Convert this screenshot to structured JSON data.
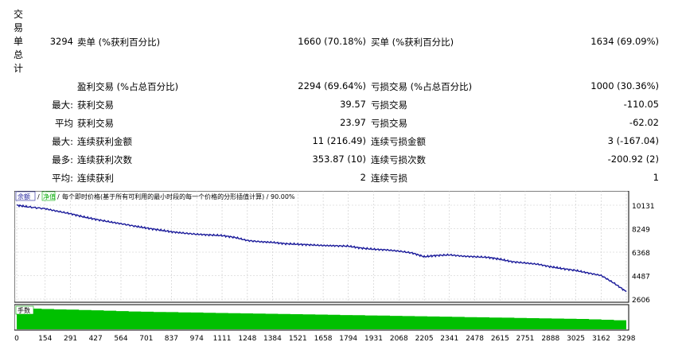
{
  "side_label": [
    "交",
    "易",
    "单",
    "总",
    "计"
  ],
  "summary": {
    "total_count": "3294",
    "sell_label": "卖单 (%获利百分比)",
    "sell_value": "1660 (70.18%)",
    "buy_label": "买单 (%获利百分比)",
    "buy_value": "1634 (69.09%)"
  },
  "profit_row": {
    "win_label": "盈利交易 (%占总百分比)",
    "win_value": "2294 (69.64%)",
    "loss_label": "亏损交易 (%占总百分比)",
    "loss_value": "1000 (30.36%)"
  },
  "stats_rows": [
    {
      "prefix": "最大:",
      "label_a": "获利交易",
      "value_a": "39.57",
      "label_b": "亏损交易",
      "value_b": "-110.05"
    },
    {
      "prefix": "平均",
      "label_a": "获利交易",
      "value_a": "23.97",
      "label_b": "亏损交易",
      "value_b": "-62.02"
    },
    {
      "prefix": "最大:",
      "label_a": "连续获利金额",
      "value_a": "11 (216.49)",
      "label_b": "连续亏损金额",
      "value_b": "3 (-167.04)"
    },
    {
      "prefix": "最多:",
      "label_a": "连续获利次数",
      "value_a": "353.87 (10)",
      "label_b": "连续亏损次数",
      "value_b": "-200.92 (2)"
    },
    {
      "prefix": "平均:",
      "label_a": "连续获利",
      "value_a": "2",
      "label_b": "连续亏损",
      "value_b": "1"
    }
  ],
  "chart_header": {
    "balance_tag": "余额",
    "sep1": "/",
    "equity_tag": "净值",
    "sep2": "/",
    "text": "每个即时价格(基于所有可利用的最小时段的每一个价格的分形插值计算) / 90.00%"
  },
  "volume_tag": "手数",
  "colors": {
    "balance_line": "#1a1a9a",
    "volume_fill": "#00c000",
    "grid": "#c8c8c8",
    "border": "#000000"
  },
  "chart_data": {
    "type": "line",
    "series": [
      {
        "name": "余额",
        "x": [
          0,
          60,
          154,
          220,
          291,
          360,
          427,
          500,
          564,
          640,
          701,
          770,
          837,
          900,
          974,
          1040,
          1111,
          1180,
          1248,
          1320,
          1384,
          1450,
          1521,
          1590,
          1658,
          1720,
          1794,
          1860,
          1931,
          2000,
          2068,
          2140,
          2205,
          2270,
          2341,
          2410,
          2478,
          2550,
          2615,
          2680,
          2751,
          2820,
          2888,
          2950,
          3025,
          3090,
          3162,
          3230,
          3298
        ],
        "values": [
          10131,
          10000,
          9850,
          9650,
          9450,
          9200,
          9000,
          8800,
          8650,
          8450,
          8300,
          8150,
          8000,
          7900,
          7800,
          7750,
          7700,
          7550,
          7300,
          7200,
          7150,
          7050,
          7000,
          6950,
          6900,
          6880,
          6850,
          6700,
          6600,
          6550,
          6450,
          6300,
          6000,
          6100,
          6150,
          6050,
          6000,
          5950,
          5800,
          5600,
          5500,
          5400,
          5200,
          5050,
          4900,
          4700,
          4500,
          3900,
          3200
        ]
      }
    ],
    "volume_series": {
      "name": "手数",
      "values": [
        1.0,
        1.0,
        0.98,
        0.96,
        0.95,
        0.93,
        0.92,
        0.9,
        0.88,
        0.86,
        0.85,
        0.84,
        0.83,
        0.82,
        0.81,
        0.8,
        0.79,
        0.78,
        0.77,
        0.76,
        0.75,
        0.74,
        0.73,
        0.72,
        0.71,
        0.7,
        0.69,
        0.68,
        0.67,
        0.66,
        0.65,
        0.64,
        0.63,
        0.62,
        0.61,
        0.6,
        0.59,
        0.58,
        0.57,
        0.56,
        0.55,
        0.54,
        0.53,
        0.52,
        0.51,
        0.5,
        0.48,
        0.46,
        0.44
      ]
    },
    "y_ticks": [
      "10131",
      "8249",
      "6368",
      "4487",
      "2606"
    ],
    "ylim": [
      2606,
      10131
    ],
    "x_ticks": [
      "0",
      "154",
      "291",
      "427",
      "564",
      "701",
      "837",
      "974",
      "1111",
      "1248",
      "1384",
      "1521",
      "1658",
      "1794",
      "1931",
      "2068",
      "2205",
      "2341",
      "2478",
      "2615",
      "2751",
      "2888",
      "3025",
      "3162",
      "3298"
    ],
    "xlim": [
      0,
      3298
    ],
    "grid": true
  }
}
